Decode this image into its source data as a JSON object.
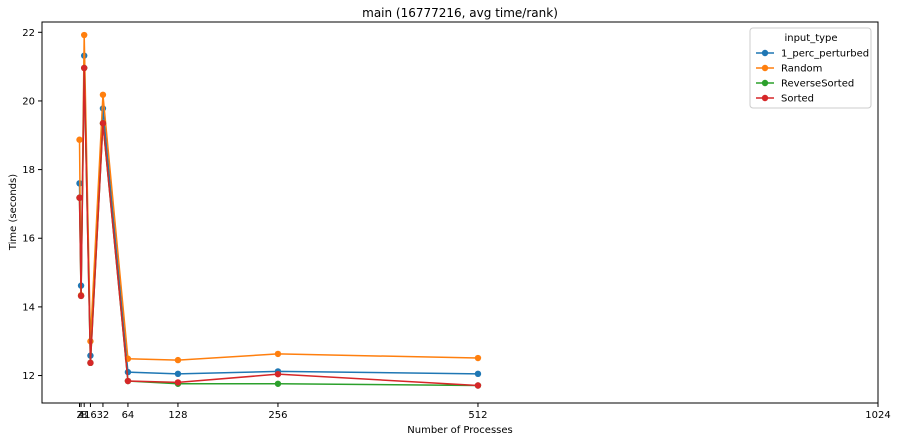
{
  "chart_data": {
    "type": "line",
    "title": "main (16777216, avg time/rank)",
    "xlabel": "Number of Processes",
    "ylabel": "Time (seconds)",
    "xlim": [
      -46,
      1024
    ],
    "ylim": [
      11.2,
      22.3
    ],
    "xticks": [
      2,
      4,
      8,
      16,
      32,
      64,
      128,
      256,
      512,
      1024
    ],
    "xtick_labels": [
      "2",
      "4",
      "8",
      "16",
      "32",
      "64",
      "128",
      "256",
      "512",
      "1024"
    ],
    "yticks": [
      12,
      14,
      16,
      18,
      20,
      22
    ],
    "ytick_labels": [
      "12",
      "14",
      "16",
      "18",
      "20",
      "22"
    ],
    "grid": false,
    "legend": {
      "title": "input_type",
      "position": "top-right"
    },
    "x": [
      2,
      4,
      8,
      16,
      32,
      64,
      128,
      256,
      512
    ],
    "series": [
      {
        "name": "1_perc_perturbed",
        "color": "#1f77b4",
        "values": [
          17.6,
          14.62,
          21.32,
          12.58,
          19.78,
          12.1,
          12.05,
          12.12,
          12.05
        ]
      },
      {
        "name": "Random",
        "color": "#ff7f0e",
        "values": [
          18.87,
          14.34,
          21.92,
          13.0,
          20.18,
          12.49,
          12.45,
          12.63,
          12.51
        ]
      },
      {
        "name": "ReverseSorted",
        "color": "#2ca02c",
        "values": [
          17.18,
          14.32,
          20.96,
          12.37,
          19.35,
          11.84,
          11.76,
          11.76,
          11.71
        ]
      },
      {
        "name": "Sorted",
        "color": "#d62728",
        "values": [
          17.18,
          14.32,
          20.96,
          12.37,
          19.35,
          11.84,
          11.8,
          12.04,
          11.71
        ]
      }
    ]
  }
}
